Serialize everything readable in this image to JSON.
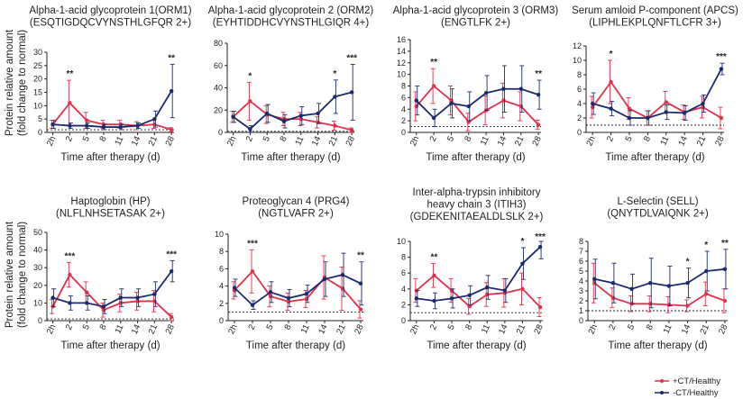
{
  "colors": {
    "ct": "#e0304a",
    "noct": "#1a2a6c",
    "axis": "#222222"
  },
  "shared": {
    "ylabel_top_line1": "Protein relative amount",
    "ylabel_top_line2": "(fold change to normal)",
    "ylabel_bottom_line1": "Protein relative amount",
    "ylabel_bottom_line2": "(fold change to normal)"
  },
  "legend": {
    "ct_label": "+CT/Healthy",
    "noct_label": "-CT/Healthy"
  },
  "chart_data": [
    {
      "type": "line",
      "title": [
        "Alpha-1-acid glycoprotein 1(ORM1)",
        "(ESQTIGDQCVYNSTHLGFQR 2+)"
      ],
      "xlabel": "Time after therapy (d)",
      "categories": [
        "2h",
        "2",
        "5",
        "8",
        "11",
        "14",
        "21",
        "28"
      ],
      "ylim": [
        0,
        30
      ],
      "yticks": [
        0,
        5,
        10,
        15,
        20,
        25,
        30
      ],
      "reference_line": 1,
      "series": [
        {
          "name": "+CT/Healthy",
          "values": [
            3,
            11,
            4.5,
            3,
            3,
            2.5,
            3,
            1
          ],
          "err": [
            1.5,
            8.5,
            3,
            1.5,
            1.5,
            1.5,
            1.5,
            0.8
          ]
        },
        {
          "name": "-CT/Healthy",
          "values": [
            3,
            2.5,
            2.5,
            2,
            2,
            2.5,
            5,
            15.5
          ],
          "err": [
            1.5,
            1,
            1,
            1,
            1,
            1,
            3,
            10
          ]
        }
      ],
      "significance": [
        {
          "index": 1,
          "label": "**"
        },
        {
          "index": 7,
          "label": "**"
        }
      ]
    },
    {
      "type": "line",
      "title": [
        "Alpha-1-acid glycoprotein 2 (ORM2)",
        "(EYHTIDDHCVYNSTHLGIQR 4+)"
      ],
      "xlabel": "Time after therapy (d)",
      "categories": [
        "2h",
        "2",
        "5",
        "8",
        "11",
        "14",
        "21",
        "28"
      ],
      "ylim": [
        0,
        80
      ],
      "yticks": [
        0,
        20,
        40,
        60,
        80
      ],
      "reference_line": 1,
      "series": [
        {
          "name": "+CT/Healthy",
          "values": [
            14,
            28,
            16,
            12,
            12,
            9,
            6,
            2
          ],
          "err": [
            5,
            17,
            8,
            6,
            6,
            5,
            4,
            2
          ]
        },
        {
          "name": "-CT/Healthy",
          "values": [
            14,
            3,
            17,
            10,
            15,
            17,
            32,
            36
          ],
          "err": [
            5,
            3,
            8,
            6,
            8,
            9,
            15,
            25
          ]
        }
      ],
      "significance": [
        {
          "index": 1,
          "label": "*"
        },
        {
          "index": 6,
          "label": "*"
        },
        {
          "index": 7,
          "label": "***"
        }
      ]
    },
    {
      "type": "line",
      "title": [
        "Alpha-1-acid glycoprotein 3 (ORM3)",
        "(ENGTLFK 2+)"
      ],
      "xlabel": "Time after therapy (d)",
      "categories": [
        "2h",
        "2",
        "5",
        "8",
        "11",
        "14",
        "21",
        "28"
      ],
      "ylim": [
        0,
        16
      ],
      "yticks": [
        0,
        2,
        4,
        6,
        8,
        10,
        12,
        14,
        16
      ],
      "reference_line": 1,
      "series": [
        {
          "name": "+CT/Healthy",
          "values": [
            4.5,
            8,
            5.5,
            1.8,
            3.8,
            5.5,
            4.5,
            1.3
          ],
          "err": [
            2.5,
            3,
            2.5,
            1.5,
            2.5,
            3,
            2.5,
            0.8
          ]
        },
        {
          "name": "-CT/Healthy",
          "values": [
            5.5,
            2.5,
            5,
            4.5,
            6.8,
            7.5,
            7.5,
            6.5
          ],
          "err": [
            2.5,
            1.5,
            2.5,
            2.5,
            3,
            4,
            4,
            2.5
          ]
        }
      ],
      "significance": [
        {
          "index": 1,
          "label": "**"
        },
        {
          "index": 7,
          "label": "**"
        }
      ]
    },
    {
      "type": "line",
      "title": [
        "Serum amloid P-component (APCS)",
        "(LIPHLEKPLQNFTLCFR 3+)"
      ],
      "xlabel": "Time after therapy (d)",
      "categories": [
        "2h",
        "2",
        "5",
        "8",
        "11",
        "14",
        "21",
        "28"
      ],
      "ylim": [
        0,
        12
      ],
      "yticks": [
        0,
        2,
        4,
        6,
        8,
        10,
        12
      ],
      "reference_line": 1,
      "series": [
        {
          "name": "+CT/Healthy",
          "values": [
            3.5,
            7,
            3.3,
            2,
            4.2,
            2.8,
            3.5,
            2
          ],
          "err": [
            1.5,
            3,
            1.5,
            1,
            1.5,
            1,
            1.5,
            1.5
          ]
        },
        {
          "name": "-CT/Healthy",
          "values": [
            4,
            3.3,
            2,
            2,
            2.8,
            2.7,
            4,
            8.8
          ],
          "err": [
            1.5,
            1,
            1,
            1,
            1,
            1,
            1.2,
            0.8
          ]
        }
      ],
      "significance": [
        {
          "index": 1,
          "label": "*"
        },
        {
          "index": 7,
          "label": "***"
        }
      ]
    },
    {
      "type": "line",
      "title": [
        "Haptoglobin (HP)",
        "(NLFLNHSETASAK 2+)"
      ],
      "xlabel": "Time after therapy (d)",
      "categories": [
        "2h",
        "2",
        "5",
        "8",
        "11",
        "14",
        "21",
        "28"
      ],
      "ylim": [
        0,
        50
      ],
      "yticks": [
        0,
        10,
        20,
        30,
        40,
        50
      ],
      "reference_line": 1,
      "series": [
        {
          "name": "+CT/Healthy",
          "values": [
            8,
            26,
            16,
            6,
            10,
            11,
            11,
            2
          ],
          "err": [
            4,
            7,
            6,
            4,
            5,
            5,
            6,
            2
          ]
        },
        {
          "name": "-CT/Healthy",
          "values": [
            13,
            10,
            10,
            8,
            13,
            13,
            15,
            28
          ],
          "err": [
            5,
            4,
            4,
            4,
            5,
            5,
            7,
            6
          ]
        }
      ],
      "significance": [
        {
          "index": 1,
          "label": "***"
        },
        {
          "index": 7,
          "label": "***"
        }
      ]
    },
    {
      "type": "line",
      "title": [
        "Proteoglycan 4 (PRG4)",
        "(NGTLVAFR 2+)"
      ],
      "xlabel": "Time after therapy (d)",
      "categories": [
        "2h",
        "2",
        "5",
        "8",
        "11",
        "14",
        "21",
        "28"
      ],
      "ylim": [
        0,
        10
      ],
      "yticks": [
        0,
        2,
        4,
        6,
        8,
        10
      ],
      "reference_line": 1,
      "series": [
        {
          "name": "+CT/Healthy",
          "values": [
            3.5,
            5.7,
            2.8,
            2.2,
            2.5,
            5,
            3.7,
            1.3
          ],
          "err": [
            1,
            2.5,
            1.2,
            1,
            1,
            2.5,
            2.5,
            1
          ]
        },
        {
          "name": "-CT/Healthy",
          "values": [
            3.8,
            1.8,
            3.3,
            2.6,
            3.1,
            4.8,
            5.3,
            4.3
          ],
          "err": [
            1,
            0.5,
            1.2,
            1,
            1,
            2,
            2.5,
            2.5
          ]
        }
      ],
      "significance": [
        {
          "index": 1,
          "label": "***"
        },
        {
          "index": 7,
          "label": "**"
        }
      ]
    },
    {
      "type": "line",
      "title": [
        "Inter-alpha-trypsin inhibitory",
        "heavy chain 3 (ITIH3)",
        "(GDEKENITAEALDLSLK 2+)"
      ],
      "xlabel": "Time after therapy (d)",
      "categories": [
        "2h",
        "2",
        "5",
        "8",
        "11",
        "14",
        "21",
        "28"
      ],
      "ylim": [
        0,
        10
      ],
      "yticks": [
        0,
        2,
        4,
        6,
        8,
        10
      ],
      "reference_line": 1,
      "series": [
        {
          "name": "+CT/Healthy",
          "values": [
            3.8,
            5.7,
            3.8,
            1.8,
            3.3,
            3.5,
            4,
            1.7
          ],
          "err": [
            1.5,
            1.5,
            1.5,
            1,
            1.5,
            1.8,
            2,
            1.2
          ]
        },
        {
          "name": "-CT/Healthy",
          "values": [
            2.8,
            2.5,
            2.8,
            3.2,
            4.2,
            3.8,
            7.2,
            9.3
          ],
          "err": [
            1,
            1,
            1.2,
            1.2,
            1.5,
            1.5,
            2,
            1.5
          ]
        }
      ],
      "significance": [
        {
          "index": 1,
          "label": "**"
        },
        {
          "index": 6,
          "label": "*"
        },
        {
          "index": 7,
          "label": "***"
        }
      ]
    },
    {
      "type": "line",
      "title": [
        "L-Selectin (SELL)",
        "(QNYTDLVAIQNK 2+)"
      ],
      "xlabel": "Time after therapy (d)",
      "categories": [
        "2h",
        "2",
        "5",
        "8",
        "11",
        "14",
        "21",
        "28"
      ],
      "ylim": [
        0,
        8
      ],
      "yticks": [
        0,
        1,
        2,
        3,
        4,
        5,
        6,
        7,
        8
      ],
      "reference_line": 1,
      "series": [
        {
          "name": "+CT/Healthy",
          "values": [
            3.8,
            2.3,
            1.7,
            1.7,
            1.6,
            1.5,
            2.7,
            2
          ],
          "err": [
            2,
            1,
            0.8,
            0.8,
            0.8,
            0.6,
            1.2,
            1.2
          ]
        },
        {
          "name": "-CT/Healthy",
          "values": [
            4.2,
            3.8,
            3.2,
            3.8,
            3.5,
            3.8,
            5,
            5.2
          ],
          "err": [
            2,
            2,
            1.5,
            2.5,
            2,
            1.5,
            2,
            2
          ]
        }
      ],
      "significance": [
        {
          "index": 5,
          "label": "*"
        },
        {
          "index": 6,
          "label": "*"
        },
        {
          "index": 7,
          "label": "**"
        }
      ]
    }
  ]
}
